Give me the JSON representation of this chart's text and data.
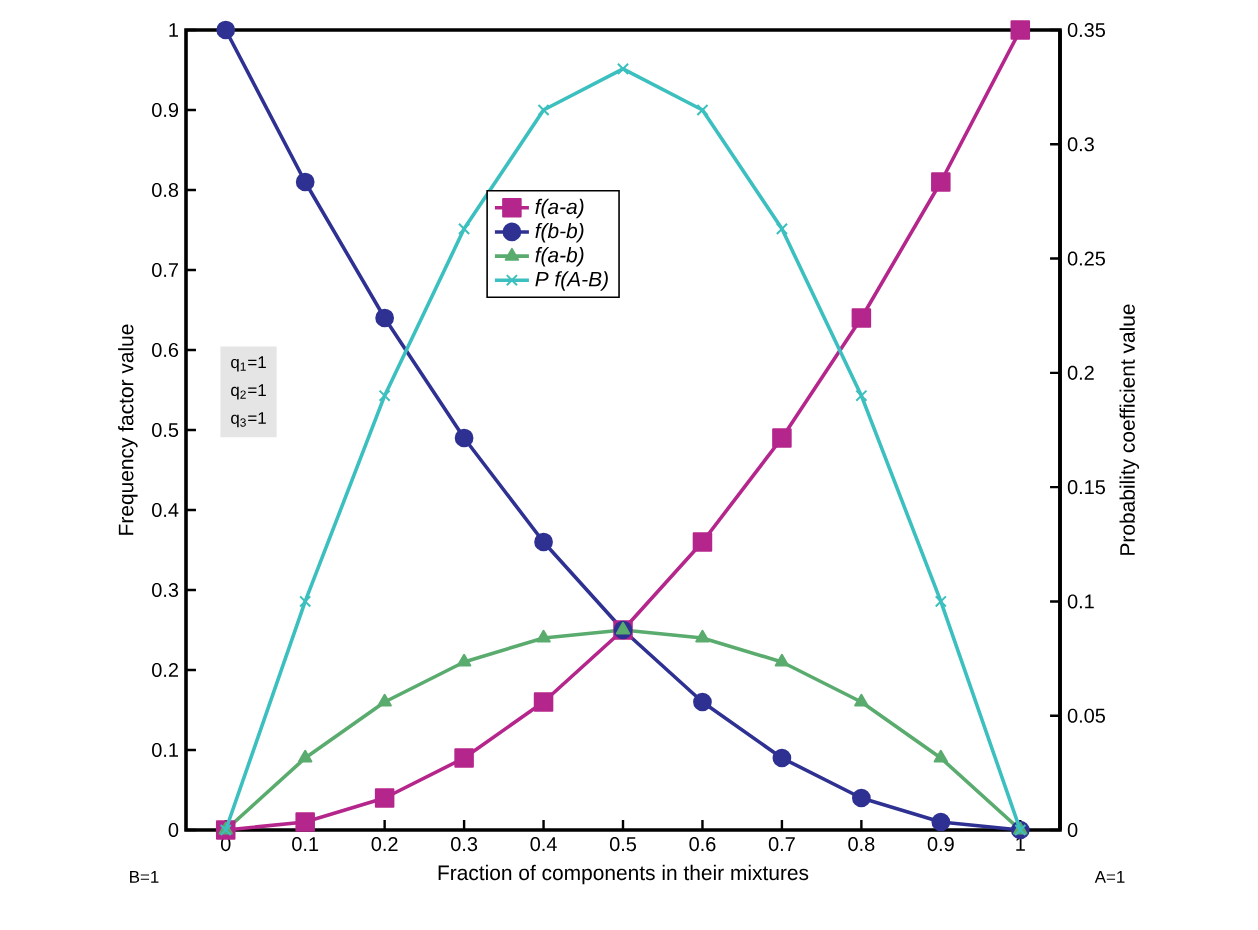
{
  "chart_data": {
    "type": "line",
    "xlabel": "Fraction of components in their mixtures",
    "ylabel": "Frequency factor value",
    "y2label": "Probability coefficient value",
    "x": [
      0,
      0.1,
      0.2,
      0.3,
      0.4,
      0.5,
      0.6,
      0.7,
      0.8,
      0.9,
      1
    ],
    "series": [
      {
        "name": "*f(a-a)*",
        "color": "#b5268c",
        "marker": "square",
        "values": [
          0,
          0.01,
          0.04,
          0.09,
          0.16,
          0.25,
          0.36,
          0.49,
          0.64,
          0.81,
          1
        ]
      },
      {
        "name": "*f(b-b)*",
        "color": "#2e3192",
        "marker": "circle",
        "values": [
          1,
          0.81,
          0.64,
          0.49,
          0.36,
          0.25,
          0.16,
          0.09,
          0.04,
          0.01,
          0
        ]
      },
      {
        "name": "*f(a-b)*",
        "color": "#5aab6e",
        "marker": "triangle",
        "values": [
          0,
          0.09,
          0.16,
          0.21,
          0.24,
          0.25,
          0.24,
          0.21,
          0.16,
          0.09,
          0
        ]
      },
      {
        "name": "*P f(A-B)*",
        "color": "#3cbfbf",
        "marker": "cross",
        "axis": "y2",
        "values": [
          0,
          0.1,
          0.19,
          0.263,
          0.315,
          0.333,
          0.315,
          0.263,
          0.19,
          0.1,
          0
        ]
      }
    ],
    "xlim": [
      -0.05,
      1.05
    ],
    "ylim": [
      0,
      1
    ],
    "y2lim": [
      0,
      0.35
    ],
    "xticks": [
      0,
      0.1,
      0.2,
      0.3,
      0.4,
      0.5,
      0.6,
      0.7,
      0.8,
      0.9,
      1
    ],
    "yticks": [
      0,
      0.1,
      0.2,
      0.3,
      0.4,
      0.5,
      0.6,
      0.7,
      0.8,
      0.9,
      1
    ],
    "y2ticks": [
      0,
      0.05,
      0.1,
      0.15,
      0.2,
      0.25,
      0.3,
      0.35
    ],
    "legend": "center",
    "grid": false,
    "annotations": [
      "q$_{1}$=1",
      "q$_{2}$=1",
      "q$_{3}$=1",
      "B=1",
      "A=1"
    ]
  }
}
